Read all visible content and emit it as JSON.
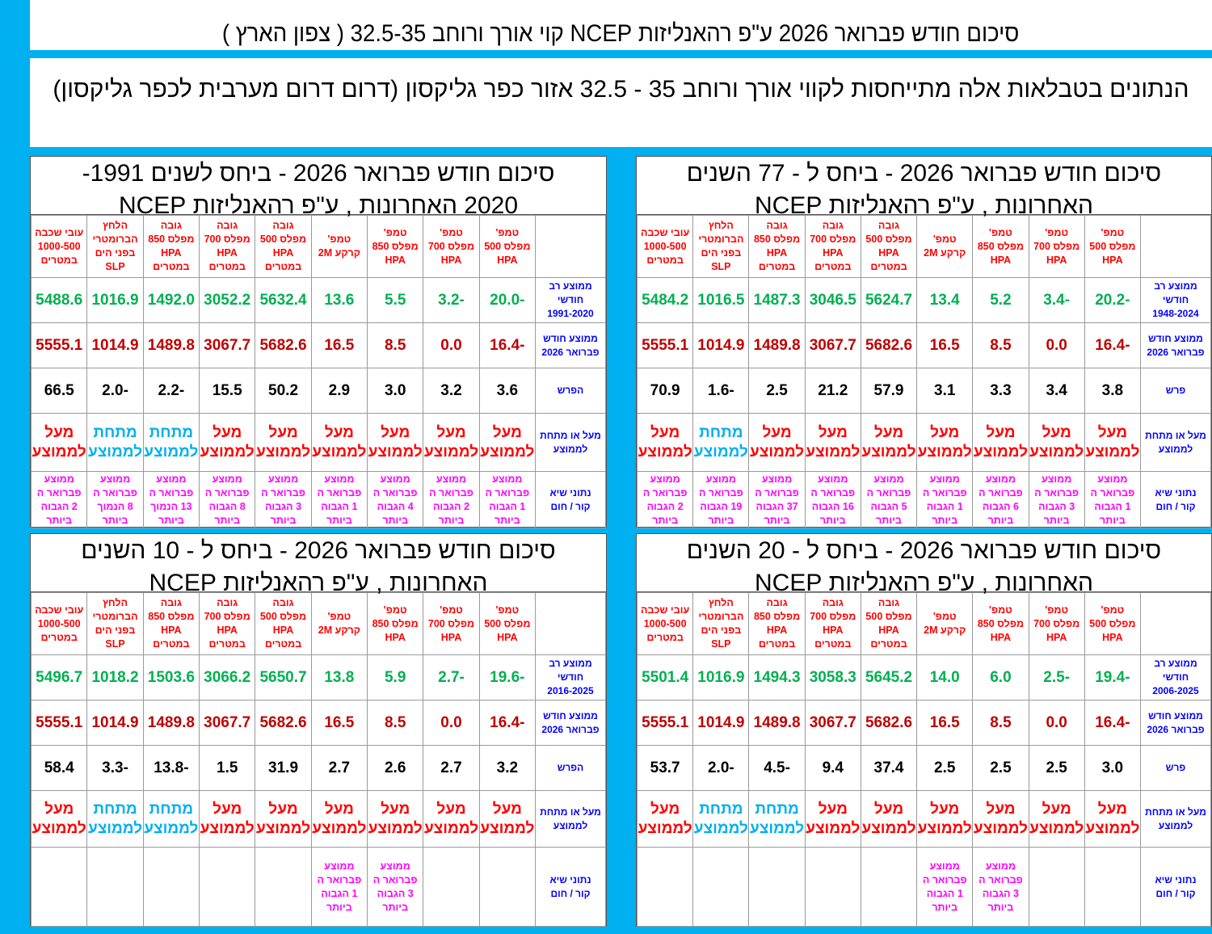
{
  "main_title": "סיכום חודש פברואר 2026 ע\"פ רהאנליזות NCEP קוי אורך ורוחב 32.5-35 ( צפון הארץ )",
  "note": "הנתונים בטבלאות אלה מתייחסות לקווי אורך ורוחב 35 - 32.5      אזור כפר  גליקסון  (דרום דרום מערבית לכפר גליקסון)",
  "colors": {
    "background": "#00B0F0",
    "avg": "#00B050",
    "current": "#C00000",
    "above": "#FF0000",
    "below": "#00B0F0",
    "record": "#FF00FF",
    "row_label": "#0000FF",
    "header": "#FF0000"
  },
  "tables": [
    {
      "title": "סיכום חודש פברואר 2026  -  ביחס ל - 77 השנים\nהאחרונות  , ע\"פ רהאנליזות NCEP",
      "columns": [
        "טמפ'\nמפלס 500\nHPA",
        "טמפ'\nמפלס 700\nHPA",
        "טמפ'\nמפלס 850\nHPA",
        "טמפ'\nקרקע 2M",
        "גובה\nמפלס 500\nHPA\nבמטרים",
        "גובה\nמפלס 700\nHPA\nבמטרים",
        "גובה\nמפלס 850\nHPA\nבמטרים",
        "הלחץ\nהברומטרי\nבפני הים\nSLP",
        "עובי שכבה\n1000-500\nבמטרים"
      ],
      "labels": {
        "avg": "ממוצע רב\nחודשי\n1948-2024",
        "current": "ממוצע חודש\nפברואר 2026",
        "diff": "פרש",
        "status": "מעל או מתחת\nלממוצע",
        "record": "נתוני שיא\nקור / חום"
      },
      "avg": [
        "-20.2",
        "-3.4",
        "5.2",
        "13.4",
        "5624.7",
        "3046.5",
        "1487.3",
        "1016.5",
        "5484.2"
      ],
      "current": [
        "-16.4",
        "0.0",
        "8.5",
        "16.5",
        "5682.6",
        "3067.7",
        "1489.8",
        "1014.9",
        "5555.1"
      ],
      "diff": [
        "3.8",
        "3.4",
        "3.3",
        "3.1",
        "57.9",
        "21.2",
        "2.5",
        "-1.6",
        "70.9"
      ],
      "status": [
        "מעל\nלממוצע",
        "מעל\nלממוצע",
        "מעל\nלממוצע",
        "מעל\nלממוצע",
        "מעל\nלממוצע",
        "מעל\nלממוצע",
        "מעל\nלממוצע",
        "מתחת\nלממוצע",
        "מעל\nלממוצע"
      ],
      "status_type": [
        "above",
        "above",
        "above",
        "above",
        "above",
        "above",
        "above",
        "below",
        "above"
      ],
      "record": [
        "ממוצע\nפברואר ה\n1 הגבוה\nביותר",
        "ממוצע\nפברואר ה\n3 הגבוה\nביותר",
        "ממוצע\nפברואר ה\n6 הגבוה\nביותר",
        "ממוצע\nפברואר ה\n1 הגבוה\nביותר",
        "ממוצע\nפברואר ה\n5 הגבוה\nביותר",
        "ממוצע\nפברואר ה\n16 הגבוה\nביותר",
        "ממוצע\nפברואר ה\n37 הגבוה\nביותר",
        "ממוצע\nפברואר ה\n19 הגבוה\nביותר",
        "ממוצע\nפברואר ה\n2 הגבוה\nביותר"
      ]
    },
    {
      "title": "סיכום חודש פברואר 2026   - ביחס לשנים 1991-\n2020 האחרונות  , ע\"פ רהאנליזות NCEP",
      "columns": [
        "טמפ'\nמפלס 500\nHPA",
        "טמפ'\nמפלס 700\nHPA",
        "טמפ'\nמפלס 850\nHPA",
        "טמפ'\nקרקע 2M",
        "גובה\nמפלס 500\nHPA\nבמטרים",
        "גובה\nמפלס 700\nHPA\nבמטרים",
        "גובה\nמפלס 850\nHPA\nבמטרים",
        "הלחץ\nהברומטרי\nבפני הים\nSLP",
        "עובי שכבה\n1000-500\nבמטרים"
      ],
      "labels": {
        "avg": "ממוצע רב\nחודשי\n1991-2020",
        "current": "ממוצע חודש\nפברואר 2026",
        "diff": "הפרש",
        "status": "מעל או מתחת\nלממוצע",
        "record": "נתוני שיא\nקור / חום"
      },
      "avg": [
        "-20.0",
        "-3.2",
        "5.5",
        "13.6",
        "5632.4",
        "3052.2",
        "1492.0",
        "1016.9",
        "5488.6"
      ],
      "current": [
        "-16.4",
        "0.0",
        "8.5",
        "16.5",
        "5682.6",
        "3067.7",
        "1489.8",
        "1014.9",
        "5555.1"
      ],
      "diff": [
        "3.6",
        "3.2",
        "3.0",
        "2.9",
        "50.2",
        "15.5",
        "-2.2",
        "-2.0",
        "66.5"
      ],
      "status": [
        "מעל\nלממוצע",
        "מעל\nלממוצע",
        "מעל\nלממוצע",
        "מעל\nלממוצע",
        "מעל\nלממוצע",
        "מעל\nלממוצע",
        "מתחת\nלממוצע",
        "מתחת\nלממוצע",
        "מעל\nלממוצע"
      ],
      "status_type": [
        "above",
        "above",
        "above",
        "above",
        "above",
        "above",
        "below",
        "below",
        "above"
      ],
      "record": [
        "ממוצע\nפברואר ה\n1 הגבוה\nביותר",
        "ממוצע\nפברואר ה\n2 הגבוה\nביותר",
        "ממוצע\nפברואר ה\n4 הגבוה\nביותר",
        "ממוצע\nפברואר ה\n1 הגבוה\nביותר",
        "ממוצע\nפברואר ה\n3 הגבוה\nביותר",
        "ממוצע\nפברואר ה\n8 הגבוה\nביותר",
        "ממוצע\nפברואר ה\n13 הנמוך\nביותר",
        "ממוצע\nפברואר ה\n8 הנמוך\nביותר",
        "ממוצע\nפברואר ה\n2 הגבוה\nביותר"
      ]
    },
    {
      "title": "סיכום חודש פברואר 2026  -  ביחס ל - 20 השנים\nהאחרונות  , ע\"פ רהאנליזות NCEP",
      "columns": [
        "טמפ'\nמפלס 500\nHPA",
        "טמפ'\nמפלס 700\nHPA",
        "טמפ'\nמפלס 850\nHPA",
        "טמפ'\nקרקע 2M",
        "גובה\nמפלס 500\nHPA\nבמטרים",
        "גובה\nמפלס 700\nHPA\nבמטרים",
        "גובה\nמפלס 850\nHPA\nבמטרים",
        "הלחץ\nהברומטרי\nבפני הים\nSLP",
        "עובי שכבה\n1000-500\nבמטרים"
      ],
      "labels": {
        "avg": "ממוצע רב\nחודשי\n2006-2025",
        "current": "ממוצע חודש\nפברואר 2026",
        "diff": "פרש",
        "status": "מעל או מתחת\nלממוצע",
        "record": "נתוני שיא\nקור / חום"
      },
      "avg": [
        "-19.4",
        "-2.5",
        "6.0",
        "14.0",
        "5645.2",
        "3058.3",
        "1494.3",
        "1016.9",
        "5501.4"
      ],
      "current": [
        "-16.4",
        "0.0",
        "8.5",
        "16.5",
        "5682.6",
        "3067.7",
        "1489.8",
        "1014.9",
        "5555.1"
      ],
      "diff": [
        "3.0",
        "2.5",
        "2.5",
        "2.5",
        "37.4",
        "9.4",
        "-4.5",
        "-2.0",
        "53.7"
      ],
      "status": [
        "מעל\nלממוצע",
        "מעל\nלממוצע",
        "מעל\nלממוצע",
        "מעל\nלממוצע",
        "מעל\nלממוצע",
        "מעל\nלממוצע",
        "מתחת\nלממוצע",
        "מתחת\nלממוצע",
        "מעל\nלממוצע"
      ],
      "status_type": [
        "above",
        "above",
        "above",
        "above",
        "above",
        "above",
        "below",
        "below",
        "above"
      ],
      "record": [
        "",
        "",
        "ממוצע\nפברואר ה\n3 הגבוה\nביותר",
        "ממוצע\nפברואר ה\n1 הגבוה\nביותר",
        "",
        "",
        "",
        "",
        ""
      ]
    },
    {
      "title": "סיכום חודש פברואר 2026   - ביחס ל - 10 השנים\nהאחרונות  , ע\"פ רהאנליזות NCEP",
      "columns": [
        "טמפ'\nמפלס 500\nHPA",
        "טמפ'\nמפלס 700\nHPA",
        "טמפ'\nמפלס 850\nHPA",
        "טמפ'\nקרקע 2M",
        "גובה\nמפלס 500\nHPA\nבמטרים",
        "גובה\nמפלס 700\nHPA\nבמטרים",
        "גובה\nמפלס 850\nHPA\nבמטרים",
        "הלחץ\nהברומטרי\nבפני הים\nSLP",
        "עובי שכבה\n1000-500\nבמטרים"
      ],
      "labels": {
        "avg": "ממוצע רב\nחודשי\n2016-2025",
        "current": "ממוצע חודש\nפברואר 2026",
        "diff": "הפרש",
        "status": "מעל או מתחת\nלממוצע",
        "record": "נתוני שיא\nקור / חום"
      },
      "avg": [
        "-19.6",
        "-2.7",
        "5.9",
        "13.8",
        "5650.7",
        "3066.2",
        "1503.6",
        "1018.2",
        "5496.7"
      ],
      "current": [
        "-16.4",
        "0.0",
        "8.5",
        "16.5",
        "5682.6",
        "3067.7",
        "1489.8",
        "1014.9",
        "5555.1"
      ],
      "diff": [
        "3.2",
        "2.7",
        "2.6",
        "2.7",
        "31.9",
        "1.5",
        "-13.8",
        "-3.3",
        "58.4"
      ],
      "status": [
        "מעל\nלממוצע",
        "מעל\nלממוצע",
        "מעל\nלממוצע",
        "מעל\nלממוצע",
        "מעל\nלממוצע",
        "מעל\nלממוצע",
        "מתחת\nלממוצע",
        "מתחת\nלממוצע",
        "מעל\nלממוצע"
      ],
      "status_type": [
        "above",
        "above",
        "above",
        "above",
        "above",
        "above",
        "below",
        "below",
        "above"
      ],
      "record": [
        "",
        "",
        "ממוצע\nפברואר ה\n3 הגבוה\nביותר",
        "ממוצע\nפברואר ה\n1 הגבוה\nביותר",
        "",
        "",
        "",
        "",
        ""
      ]
    }
  ]
}
